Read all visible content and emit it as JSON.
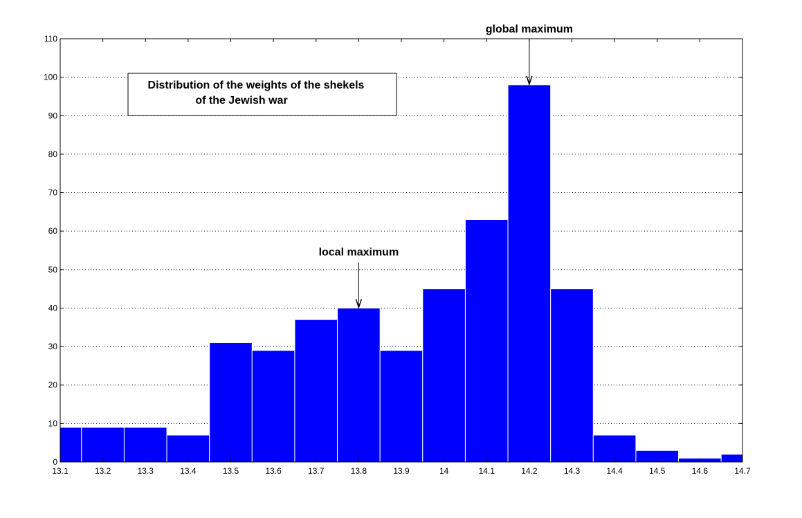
{
  "chart_data": {
    "type": "bar",
    "title": "",
    "xlabel": "",
    "ylabel": "",
    "xlim": [
      13.1,
      14.7
    ],
    "ylim": [
      0,
      110
    ],
    "xticks": [
      "13.1",
      "13.2",
      "13.3",
      "13.4",
      "13.5",
      "13.6",
      "13.7",
      "13.8",
      "13.9",
      "14",
      "14.1",
      "14.2",
      "14.3",
      "14.4",
      "14.5",
      "14.6",
      "14.7"
    ],
    "yticks": [
      "0",
      "10",
      "20",
      "30",
      "40",
      "50",
      "60",
      "70",
      "80",
      "90",
      "100",
      "110"
    ],
    "grid": "horizontal dotted",
    "bar_color": "#0000ff",
    "bins": [
      {
        "x_start": 13.1,
        "x_end": 13.15,
        "value": 9
      },
      {
        "x_start": 13.15,
        "x_end": 13.25,
        "value": 9
      },
      {
        "x_start": 13.25,
        "x_end": 13.35,
        "value": 9
      },
      {
        "x_start": 13.35,
        "x_end": 13.45,
        "value": 7
      },
      {
        "x_start": 13.45,
        "x_end": 13.55,
        "value": 31
      },
      {
        "x_start": 13.55,
        "x_end": 13.65,
        "value": 29
      },
      {
        "x_start": 13.65,
        "x_end": 13.75,
        "value": 37
      },
      {
        "x_start": 13.75,
        "x_end": 13.85,
        "value": 40
      },
      {
        "x_start": 13.85,
        "x_end": 13.95,
        "value": 29
      },
      {
        "x_start": 13.95,
        "x_end": 14.05,
        "value": 45
      },
      {
        "x_start": 14.05,
        "x_end": 14.15,
        "value": 63
      },
      {
        "x_start": 14.15,
        "x_end": 14.25,
        "value": 98
      },
      {
        "x_start": 14.25,
        "x_end": 14.35,
        "value": 45
      },
      {
        "x_start": 14.35,
        "x_end": 14.45,
        "value": 7
      },
      {
        "x_start": 14.45,
        "x_end": 14.55,
        "value": 3
      },
      {
        "x_start": 14.55,
        "x_end": 14.65,
        "value": 1
      },
      {
        "x_start": 14.65,
        "x_end": 14.7,
        "value": 2
      }
    ],
    "legend_box": {
      "lines": [
        "Distribution of the weights of the shekels",
        "of the Jewish war"
      ],
      "placement": "top-left"
    },
    "annotations": [
      {
        "text": "local maximum",
        "x": 13.8,
        "y": 40
      },
      {
        "text": "global maximum",
        "x": 14.2,
        "y": 98
      }
    ]
  }
}
